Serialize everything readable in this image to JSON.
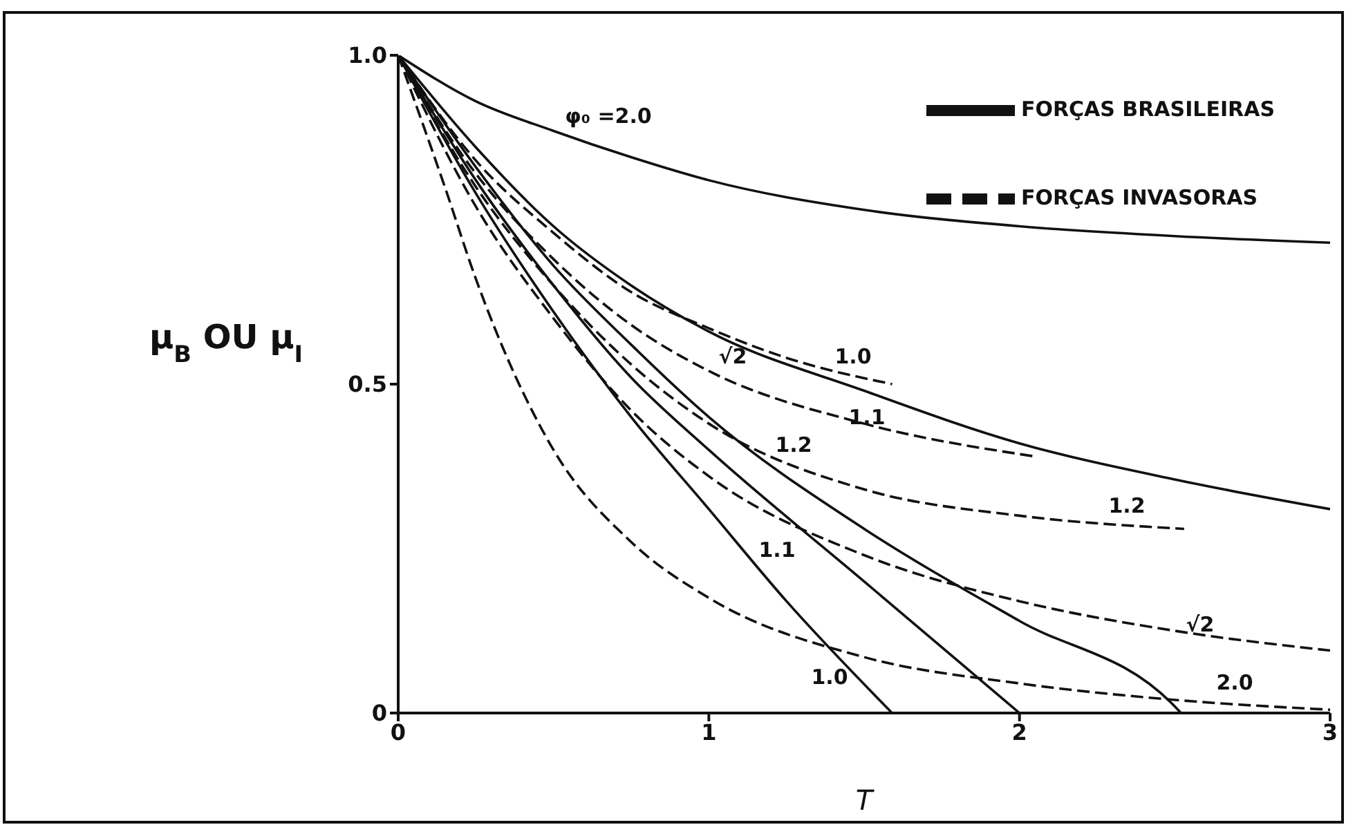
{
  "chart_data": {
    "type": "line",
    "xlabel": "T",
    "ylabel": "μ$_{B}$ OU μ$_{I}$",
    "xlim": [
      0,
      3
    ],
    "ylim": [
      0,
      1
    ],
    "xticks": [
      0,
      1,
      2,
      3
    ],
    "yticks": [
      0,
      0.5,
      {
        "value": 1,
        "label": "1.0"
      }
    ],
    "grid": false,
    "marker": "none",
    "legend": "top right",
    "series": [
      {
        "name": "FORÇAS BRASILEIRAS",
        "color": "#111111",
        "line_style": "solid",
        "x": [
          0,
          0.25,
          0.5,
          0.75,
          1,
          1.5,
          2,
          2.5,
          3
        ],
        "values": [
          1,
          0.93,
          0.885,
          0.845,
          0.81,
          0.765,
          0.74,
          0.725,
          0.715
        ]
      },
      {
        "color": "#111111",
        "line_style": "solid",
        "x": [
          0,
          0.25,
          0.5,
          0.75,
          1,
          1.5,
          2,
          2.5,
          3
        ],
        "values": [
          1,
          0.86,
          0.74,
          0.65,
          0.58,
          0.49,
          0.41,
          0.355,
          0.31
        ]
      },
      {
        "color": "#111111",
        "line_style": "solid",
        "x": [
          0,
          0.25,
          0.5,
          0.75,
          1,
          1.5,
          2,
          2.5,
          2.52
        ],
        "values": [
          1,
          0.83,
          0.68,
          0.56,
          0.45,
          0.28,
          0.14,
          0.01,
          0
        ]
      },
      {
        "color": "#111111",
        "line_style": "solid",
        "x": [
          0,
          0.25,
          0.5,
          0.75,
          1,
          1.5,
          2
        ],
        "values": [
          1,
          0.81,
          0.65,
          0.51,
          0.4,
          0.2,
          0
        ]
      },
      {
        "color": "#111111",
        "line_style": "solid",
        "x": [
          0,
          0.25,
          0.5,
          0.75,
          1,
          1.25,
          1.59
        ],
        "values": [
          1,
          0.79,
          0.61,
          0.45,
          0.31,
          0.17,
          0
        ]
      },
      {
        "name": "FORÇAS INVASORAS",
        "color": "#111111",
        "line_style": "dashed",
        "x": [
          0,
          0.25,
          0.5,
          0.75,
          1,
          1.25,
          1.59
        ],
        "values": [
          1,
          0.84,
          0.73,
          0.64,
          0.585,
          0.54,
          0.5
        ]
      },
      {
        "color": "#111111",
        "line_style": "dashed",
        "x": [
          0,
          0.25,
          0.5,
          0.75,
          1,
          1.5,
          2.05
        ],
        "values": [
          1,
          0.82,
          0.69,
          0.59,
          0.52,
          0.44,
          0.39
        ]
      },
      {
        "color": "#111111",
        "line_style": "dashed",
        "x": [
          0,
          0.25,
          0.5,
          0.75,
          1,
          1.5,
          2,
          2.53
        ],
        "values": [
          1,
          0.8,
          0.65,
          0.53,
          0.44,
          0.34,
          0.3,
          0.28
        ]
      },
      {
        "color": "#111111",
        "line_style": "dashed",
        "x": [
          0,
          0.25,
          0.5,
          0.75,
          1,
          1.5,
          2,
          2.5,
          3
        ],
        "values": [
          1,
          0.77,
          0.6,
          0.46,
          0.36,
          0.24,
          0.17,
          0.125,
          0.095
        ]
      },
      {
        "color": "#111111",
        "line_style": "dashed",
        "x": [
          0,
          0.15,
          0.25,
          0.5,
          0.75,
          1,
          1.5,
          2,
          2.5,
          3
        ],
        "values": [
          1,
          0.8,
          0.66,
          0.4,
          0.26,
          0.175,
          0.085,
          0.045,
          0.02,
          0.005
        ]
      }
    ],
    "annotations": [
      "φ₀ =2.0",
      "√2",
      "1.0",
      "1.1",
      "1.2",
      "1.2",
      "1.1",
      "√2",
      "1.0",
      "2.0"
    ]
  }
}
